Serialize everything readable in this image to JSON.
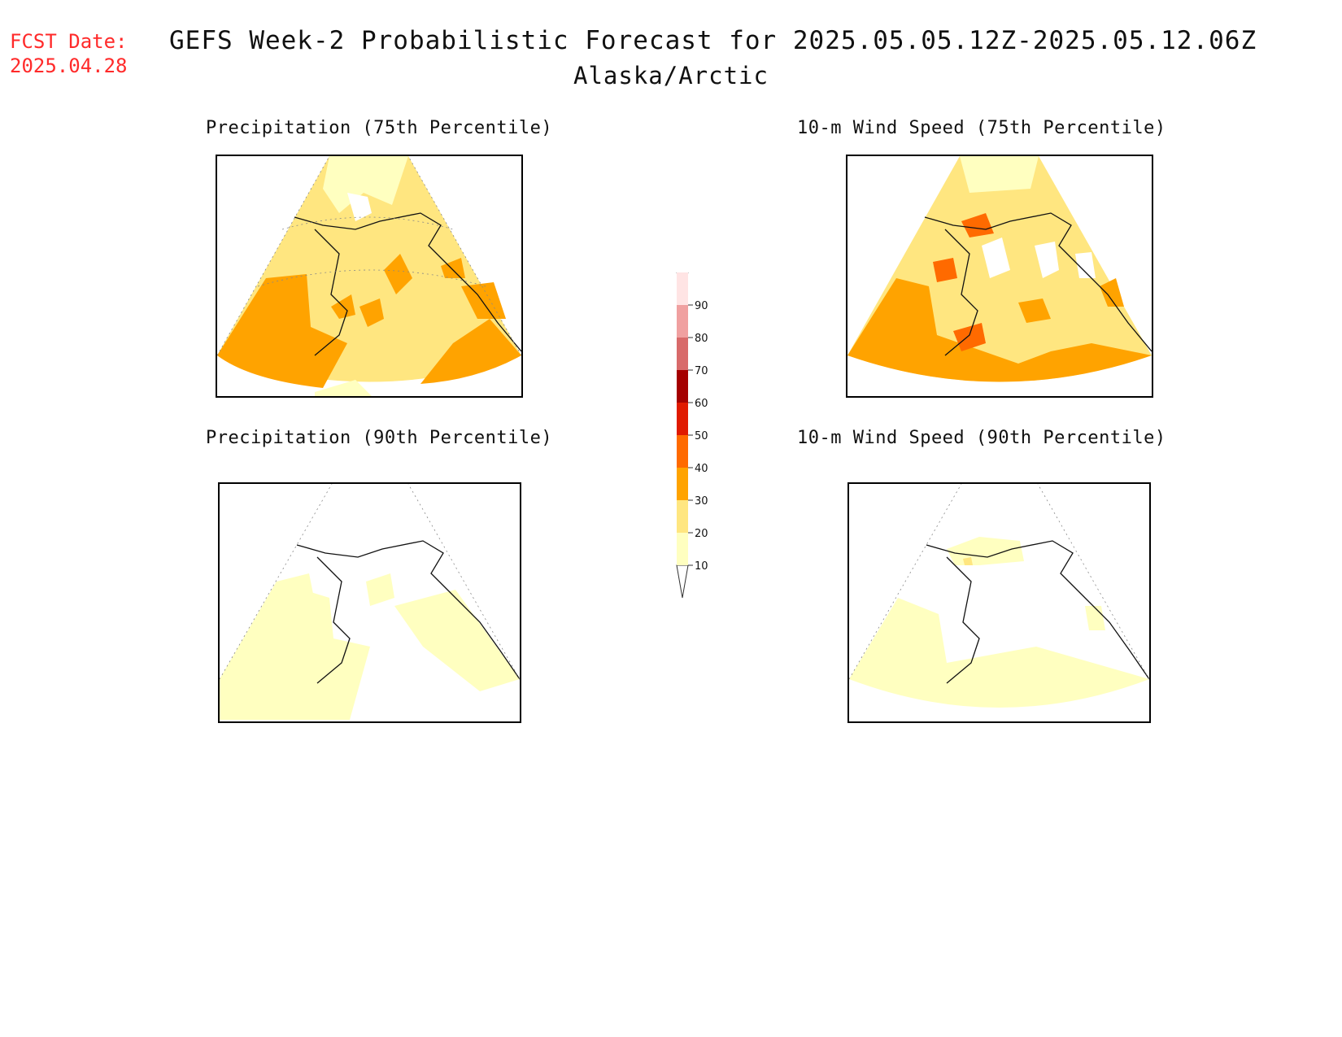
{
  "header": {
    "fcst_label": "FCST Date:",
    "fcst_date": "2025.04.28",
    "title": "GEFS Week-2 Probabilistic Forecast for 2025.05.05.12Z-2025.05.12.06Z",
    "region": "Alaska/Arctic"
  },
  "panels": [
    {
      "id": "precip75",
      "title": "Precipitation (75th Percentile)",
      "fill": "mostly 20-40% probability"
    },
    {
      "id": "wind75",
      "title": "10-m Wind Speed (75th Percentile)",
      "fill": "mostly 20-50% probability"
    },
    {
      "id": "precip90",
      "title": "Precipitation (90th Percentile)",
      "fill": "mostly 10-20% probability"
    },
    {
      "id": "wind90",
      "title": "10-m Wind Speed (90th Percentile)",
      "fill": "mostly 10-20% probability"
    }
  ],
  "legend": {
    "levels": [
      "10",
      "20",
      "30",
      "40",
      "50",
      "60",
      "70",
      "80",
      "90"
    ],
    "colors": [
      "#ffffc0",
      "#ffe680",
      "#ffa300",
      "#ff6a00",
      "#e01a00",
      "#a50000",
      "#d86a6a",
      "#f0a0a0",
      "#ffe4e4"
    ]
  }
}
